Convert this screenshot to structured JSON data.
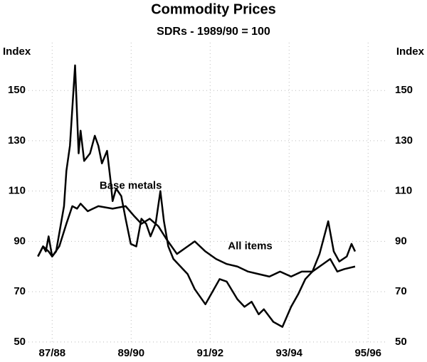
{
  "chart_data": {
    "type": "line",
    "title": "Commodity Prices",
    "subtitle": "SDRs - 1989/90 = 100",
    "ylabel": "Index",
    "y2label": "Index",
    "xlim": [
      1987.4,
      1996.5
    ],
    "xticks": [
      {
        "value": 1988,
        "label": "87/88"
      },
      {
        "value": 1990,
        "label": "89/90"
      },
      {
        "value": 1992,
        "label": "91/92"
      },
      {
        "value": 1994,
        "label": "93/94"
      },
      {
        "value": 1996,
        "label": "95/96"
      }
    ],
    "ylim": [
      46,
      169
    ],
    "yticks": [
      50,
      70,
      90,
      110,
      130,
      150
    ],
    "y2lim": [
      46,
      169
    ],
    "y2ticks": [
      50,
      70,
      90,
      110,
      130,
      150
    ],
    "grid": true,
    "annotations": [
      {
        "text": "Base metals",
        "x": 1989.2,
        "y": 112
      },
      {
        "text": "All items",
        "x": 1992.45,
        "y": 88
      }
    ],
    "series": [
      {
        "name": "Base metals",
        "color": "#000000",
        "x": [
          1987.64,
          1987.77,
          1987.84,
          1987.91,
          1988.0,
          1988.1,
          1988.2,
          1988.3,
          1988.36,
          1988.45,
          1988.58,
          1988.67,
          1988.72,
          1988.81,
          1988.96,
          1989.08,
          1989.17,
          1989.26,
          1989.39,
          1989.48,
          1989.53,
          1989.62,
          1989.75,
          1989.86,
          1989.99,
          1990.13,
          1990.26,
          1990.38,
          1990.49,
          1990.62,
          1990.74,
          1990.83,
          1990.94,
          1991.07,
          1991.25,
          1991.43,
          1991.61,
          1991.88,
          1992.06,
          1992.24,
          1992.42,
          1992.69,
          1992.87,
          1993.05,
          1993.23,
          1993.36,
          1993.6,
          1993.83,
          1994.05,
          1994.23,
          1994.41,
          1994.59,
          1994.77,
          1994.99,
          1995.13,
          1995.27,
          1995.46,
          1995.58,
          1995.67
        ],
        "values": [
          84,
          88,
          86,
          92,
          84,
          86,
          95,
          104,
          118,
          128,
          160,
          125,
          134,
          122,
          125,
          132,
          128,
          121,
          126,
          114,
          106,
          111,
          108,
          99,
          89,
          88,
          99,
          97,
          92,
          97,
          110,
          98,
          88,
          83,
          80,
          77,
          71,
          65,
          70,
          75,
          74,
          67,
          64,
          66,
          61,
          63,
          58,
          56,
          64,
          69,
          75,
          78,
          85,
          98,
          86,
          82,
          84,
          89,
          86
        ]
      },
      {
        "name": "All items",
        "color": "#000000",
        "x": [
          1987.64,
          1987.77,
          1987.91,
          1988.0,
          1988.18,
          1988.36,
          1988.51,
          1988.63,
          1988.72,
          1988.9,
          1989.17,
          1989.53,
          1989.86,
          1990.08,
          1990.26,
          1990.47,
          1990.69,
          1990.89,
          1991.16,
          1991.34,
          1991.61,
          1991.88,
          1992.15,
          1992.42,
          1992.69,
          1992.96,
          1993.23,
          1993.5,
          1993.77,
          1994.05,
          1994.32,
          1994.59,
          1994.86,
          1995.04,
          1995.22,
          1995.4,
          1995.67
        ],
        "values": [
          84,
          88,
          86,
          84,
          88,
          97,
          104,
          103,
          105,
          102,
          104,
          103,
          104,
          100,
          97,
          99,
          96,
          91,
          85,
          87,
          90,
          86,
          83,
          81,
          80,
          78,
          77,
          76,
          78,
          76,
          78,
          78,
          81,
          83,
          78,
          79,
          80
        ]
      }
    ]
  }
}
